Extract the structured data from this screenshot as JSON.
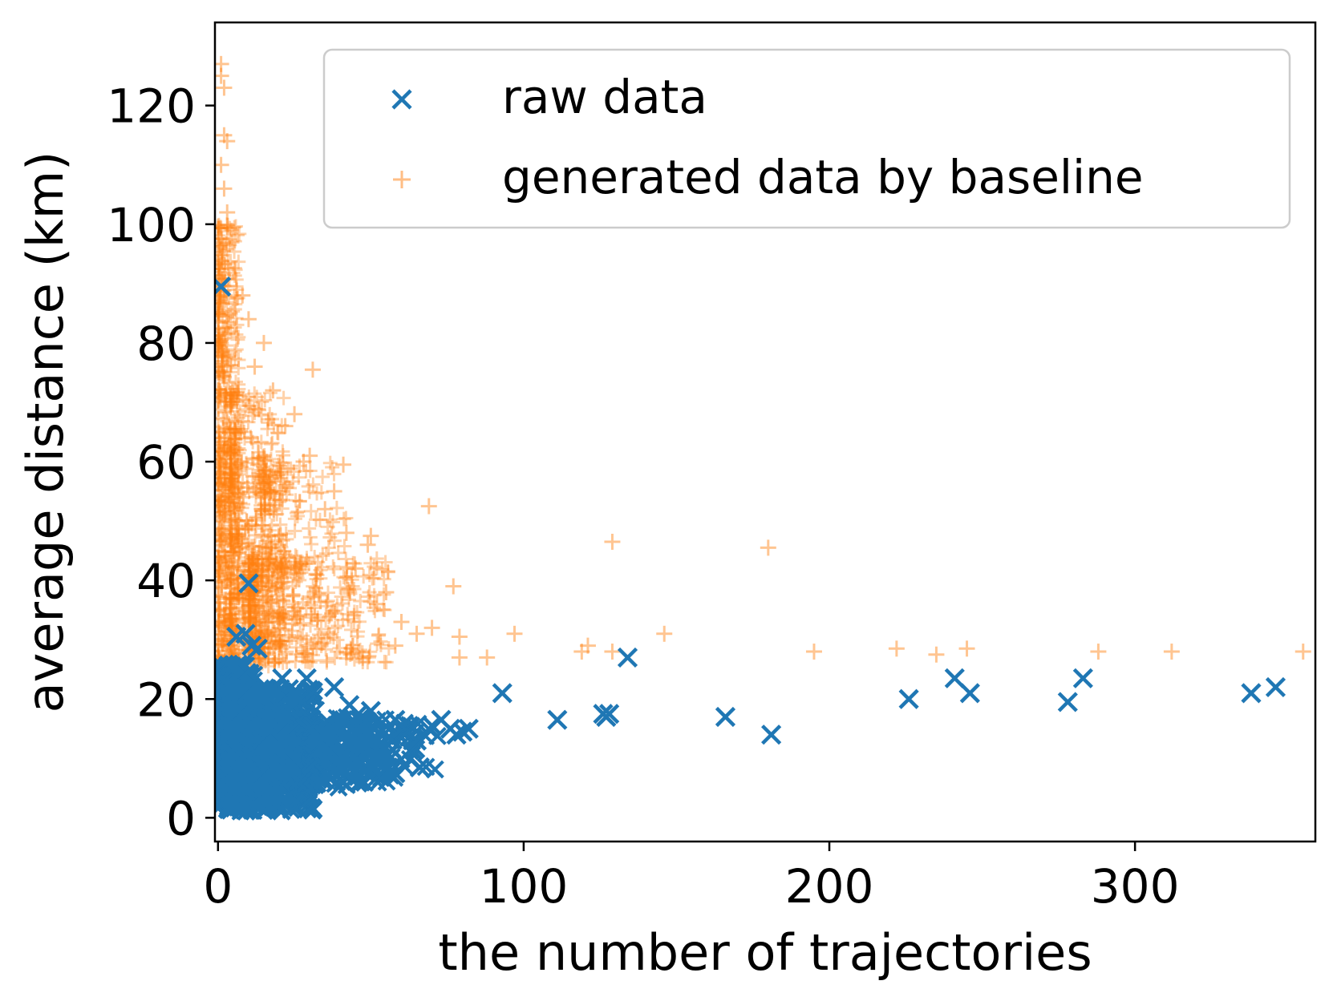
{
  "chart_data": {
    "type": "scatter",
    "title": "",
    "xlabel": "the number of trajectories",
    "ylabel": "average distance (km)",
    "xlim": [
      -1,
      359
    ],
    "ylim": [
      -4,
      134
    ],
    "xticks": [
      0,
      100,
      200,
      300
    ],
    "yticks": [
      0,
      20,
      40,
      60,
      80,
      100,
      120
    ],
    "grid": false,
    "legend": "top-right",
    "colors": {
      "raw": "#1f77b4",
      "generated": "#ff7f0e"
    },
    "series": [
      {
        "name": "raw data",
        "marker": "x",
        "color": "#1f77b4",
        "points": [
          [
            1,
            89.5
          ],
          [
            10,
            39.5
          ],
          [
            6,
            30.5
          ],
          [
            9,
            31
          ],
          [
            11,
            29
          ],
          [
            13,
            28.5
          ],
          [
            21,
            23.5
          ],
          [
            29,
            23.5
          ],
          [
            38,
            22
          ],
          [
            43,
            19
          ],
          [
            46,
            17.5
          ],
          [
            50,
            18
          ],
          [
            58,
            16.5
          ],
          [
            60,
            15
          ],
          [
            62,
            14.5
          ],
          [
            65,
            13
          ],
          [
            70,
            15.5
          ],
          [
            73,
            16.5
          ],
          [
            76,
            15
          ],
          [
            78,
            14
          ],
          [
            80,
            14.5
          ],
          [
            82,
            15
          ],
          [
            93,
            21
          ],
          [
            111,
            16.5
          ],
          [
            126,
            17.5
          ],
          [
            127,
            17
          ],
          [
            128,
            17.5
          ],
          [
            134,
            27
          ],
          [
            166,
            17
          ],
          [
            181,
            14
          ],
          [
            226,
            20
          ],
          [
            241,
            23.5
          ],
          [
            246,
            21
          ],
          [
            278,
            19.5
          ],
          [
            283,
            23.5
          ],
          [
            338,
            21
          ],
          [
            346,
            22
          ],
          [
            66,
            8.5
          ],
          [
            58,
            7.5
          ],
          [
            54,
            10
          ],
          [
            48,
            12
          ]
        ],
        "density": [
          {
            "x": [
              0,
              12
            ],
            "y": [
              1,
              26
            ],
            "n": 520
          },
          {
            "x": [
              4,
              32
            ],
            "y": [
              1,
              22
            ],
            "n": 600
          },
          {
            "x": [
              14,
              58
            ],
            "y": [
              5,
              17
            ],
            "n": 380
          },
          {
            "x": [
              30,
              72
            ],
            "y": [
              8,
              16
            ],
            "n": 120
          }
        ]
      },
      {
        "name": "generated data by baseline",
        "marker": "+",
        "color": "#ff7f0e",
        "points": [
          [
            1,
            127
          ],
          [
            1,
            125
          ],
          [
            2,
            123
          ],
          [
            2,
            115
          ],
          [
            3,
            114
          ],
          [
            1,
            110
          ],
          [
            2,
            106
          ],
          [
            3,
            102
          ],
          [
            31,
            75.5
          ],
          [
            41,
            59.5
          ],
          [
            38,
            55
          ],
          [
            69,
            52.5
          ],
          [
            50,
            47.5
          ],
          [
            49,
            46
          ],
          [
            129,
            46.5
          ],
          [
            180,
            45.5
          ],
          [
            77,
            39
          ],
          [
            97,
            31
          ],
          [
            79,
            30.5
          ],
          [
            146,
            31
          ],
          [
            88,
            27
          ],
          [
            79,
            27
          ],
          [
            119,
            28
          ],
          [
            121,
            29
          ],
          [
            129,
            28
          ],
          [
            195,
            28
          ],
          [
            222,
            28.5
          ],
          [
            235,
            27.5
          ],
          [
            245,
            28.5
          ],
          [
            288,
            28
          ],
          [
            312,
            28
          ],
          [
            355,
            28
          ],
          [
            22,
            66
          ],
          [
            18,
            72
          ],
          [
            25,
            68
          ],
          [
            30,
            61
          ],
          [
            35,
            52
          ],
          [
            15,
            80
          ],
          [
            10,
            84
          ],
          [
            8,
            88
          ],
          [
            12,
            76
          ],
          [
            55,
            38
          ],
          [
            60,
            33
          ],
          [
            65,
            31
          ],
          [
            70,
            32
          ],
          [
            45,
            42
          ],
          [
            52,
            36
          ],
          [
            58,
            29
          ],
          [
            42,
            48
          ],
          [
            28,
            60
          ]
        ],
        "density": [
          {
            "x": [
              0,
              7
            ],
            "y": [
              5,
              100
            ],
            "n": 620
          },
          {
            "x": [
              4,
              22
            ],
            "y": [
              25,
              72
            ],
            "n": 460
          },
          {
            "x": [
              10,
              56
            ],
            "y": [
              26,
              44
            ],
            "n": 430
          },
          {
            "x": [
              14,
              42
            ],
            "y": [
              40,
              60
            ],
            "n": 130
          }
        ]
      }
    ]
  }
}
